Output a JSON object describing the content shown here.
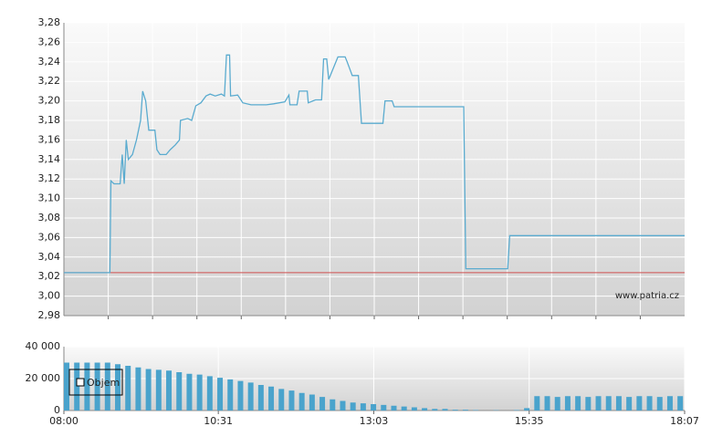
{
  "chart_data": [
    {
      "type": "line",
      "x": [
        480,
        525,
        526,
        529,
        535,
        537,
        539,
        541,
        543,
        547,
        551,
        555,
        557,
        560,
        563,
        569,
        571,
        574,
        580,
        584,
        589,
        593,
        594,
        601,
        605,
        609,
        614,
        619,
        623,
        628,
        634,
        637,
        639,
        642,
        643,
        650,
        655,
        663,
        678,
        685,
        696,
        700,
        701,
        708,
        710,
        718,
        719,
        726,
        732,
        734,
        737,
        739,
        748,
        755,
        757,
        762,
        768,
        771,
        792,
        794,
        801,
        803,
        871,
        873,
        914,
        916,
        1087
      ],
      "values": [
        3.024,
        3.024,
        3.118,
        3.115,
        3.115,
        3.145,
        3.115,
        3.16,
        3.14,
        3.145,
        3.16,
        3.18,
        3.21,
        3.2,
        3.17,
        3.17,
        3.15,
        3.145,
        3.145,
        3.15,
        3.155,
        3.16,
        3.18,
        3.182,
        3.18,
        3.195,
        3.198,
        3.205,
        3.207,
        3.205,
        3.207,
        3.205,
        3.247,
        3.247,
        3.205,
        3.206,
        3.198,
        3.196,
        3.196,
        3.197,
        3.199,
        3.206,
        3.196,
        3.196,
        3.21,
        3.21,
        3.198,
        3.201,
        3.201,
        3.243,
        3.243,
        3.222,
        3.245,
        3.245,
        3.24,
        3.226,
        3.226,
        3.177,
        3.177,
        3.2,
        3.2,
        3.194,
        3.194,
        3.028,
        3.028,
        3.062,
        3.062
      ],
      "color": "#5aabcf",
      "xlim": [
        480,
        1087
      ],
      "ylim": [
        2.98,
        3.28
      ],
      "yticks": [
        {
          "value": 2.98,
          "label": "2,98"
        },
        {
          "value": 3.0,
          "label": "3,00"
        },
        {
          "value": 3.02,
          "label": "3,02"
        },
        {
          "value": 3.04,
          "label": "3,04"
        },
        {
          "value": 3.06,
          "label": "3,06"
        },
        {
          "value": 3.08,
          "label": "3,08"
        },
        {
          "value": 3.1,
          "label": "3,10"
        },
        {
          "value": 3.12,
          "label": "3,12"
        },
        {
          "value": 3.14,
          "label": "3,14"
        },
        {
          "value": 3.16,
          "label": "3,16"
        },
        {
          "value": 3.18,
          "label": "3,18"
        },
        {
          "value": 3.2,
          "label": "3,20"
        },
        {
          "value": 3.22,
          "label": "3,22"
        },
        {
          "value": 3.24,
          "label": "3,24"
        },
        {
          "value": 3.26,
          "label": "3,26"
        },
        {
          "value": 3.28,
          "label": "3,28"
        }
      ],
      "reference_line": {
        "value": 3.024,
        "color": "#d05050"
      },
      "watermark": "www.patria.cz",
      "grid": true
    },
    {
      "type": "bar",
      "x": [
        480,
        490,
        500,
        510,
        520,
        530,
        540,
        550,
        560,
        570,
        580,
        590,
        600,
        610,
        620,
        630,
        640,
        650,
        660,
        670,
        680,
        690,
        700,
        710,
        720,
        730,
        740,
        750,
        760,
        770,
        780,
        790,
        800,
        810,
        820,
        830,
        840,
        850,
        860,
        870,
        880,
        890,
        900,
        910,
        920,
        930,
        940,
        950,
        960,
        970,
        980,
        990,
        1000,
        1010,
        1020,
        1030,
        1040,
        1050,
        1060,
        1070,
        1080
      ],
      "series": [
        {
          "name": "Objem",
          "color": "#4aa3cc",
          "values": [
            30000,
            30000,
            30000,
            30000,
            30000,
            29000,
            28000,
            27000,
            26000,
            25500,
            25000,
            24000,
            23000,
            22500,
            21500,
            20500,
            19500,
            18500,
            17500,
            16000,
            15000,
            13500,
            12500,
            11000,
            10000,
            8500,
            7000,
            6000,
            5000,
            4500,
            4000,
            3500,
            3000,
            2500,
            2000,
            1500,
            1000,
            1000,
            500,
            500,
            300,
            0,
            200,
            0,
            300,
            1500,
            9000,
            9000,
            8500,
            9000,
            9000,
            8500,
            9000,
            9000,
            9000,
            8500,
            9000,
            9000,
            8500,
            9000,
            9000
          ]
        }
      ],
      "xlim": [
        480,
        1087
      ],
      "xticks": [
        {
          "value": 480,
          "label": "08:00"
        },
        {
          "value": 631,
          "label": "10:31"
        },
        {
          "value": 783,
          "label": "13:03"
        },
        {
          "value": 935,
          "label": "15:35"
        },
        {
          "value": 1087,
          "label": "18:07"
        }
      ],
      "ylim": [
        0,
        40000
      ],
      "yticks": [
        0,
        {
          "value": 20000,
          "label": "20 000"
        },
        {
          "value": 40000,
          "label": "40 000"
        }
      ],
      "legend": "upper left",
      "grid": true
    }
  ]
}
